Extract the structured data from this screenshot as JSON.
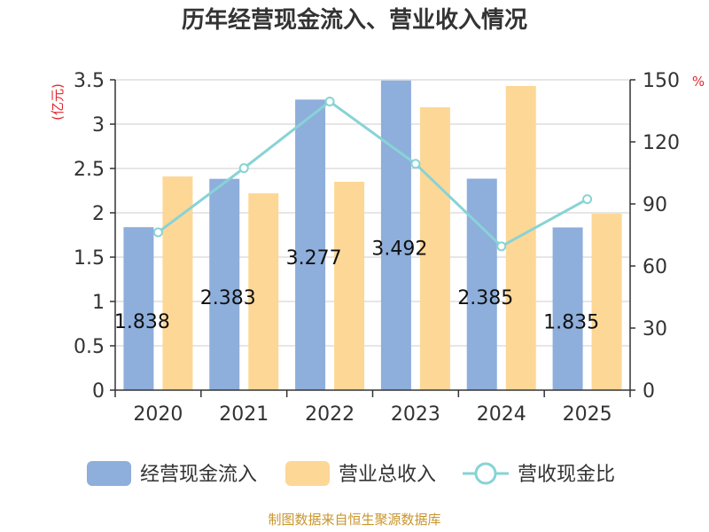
{
  "chart_data": {
    "type": "bar",
    "title": "历年经营现金流入、营业收入情况",
    "categories": [
      "2020",
      "2021",
      "2022",
      "2023",
      "2024",
      "2025"
    ],
    "series": [
      {
        "name": "经营现金流入",
        "axis": "left",
        "kind": "bar",
        "color": "#8eaedb",
        "values": [
          1.838,
          2.383,
          3.277,
          3.492,
          2.385,
          1.835
        ],
        "labels": [
          "1.838",
          "2.383",
          "3.277",
          "3.492",
          "2.385",
          "1.835"
        ]
      },
      {
        "name": "营业总收入",
        "axis": "left",
        "kind": "bar",
        "color": "#fdd796",
        "values": [
          2.41,
          2.22,
          2.35,
          3.19,
          3.43,
          1.99
        ]
      },
      {
        "name": "营收现金比",
        "axis": "right",
        "kind": "line",
        "color": "#87d3d6",
        "values": [
          76.3,
          107.3,
          139.5,
          109.4,
          69.5,
          92.3
        ]
      }
    ],
    "y_left": {
      "unit": "(亿元)",
      "ylim": [
        0,
        3.5
      ],
      "ticks": [
        "0",
        "0.5",
        "1",
        "1.5",
        "2",
        "2.5",
        "3",
        "3.5"
      ]
    },
    "y_right": {
      "unit": "%",
      "ylim": [
        0,
        150
      ],
      "ticks": [
        "0",
        "30",
        "60",
        "90",
        "120",
        "150"
      ]
    },
    "grid": true,
    "legend": "bottom"
  },
  "footer": {
    "source": "制图数据来自恒生聚源数据库"
  }
}
